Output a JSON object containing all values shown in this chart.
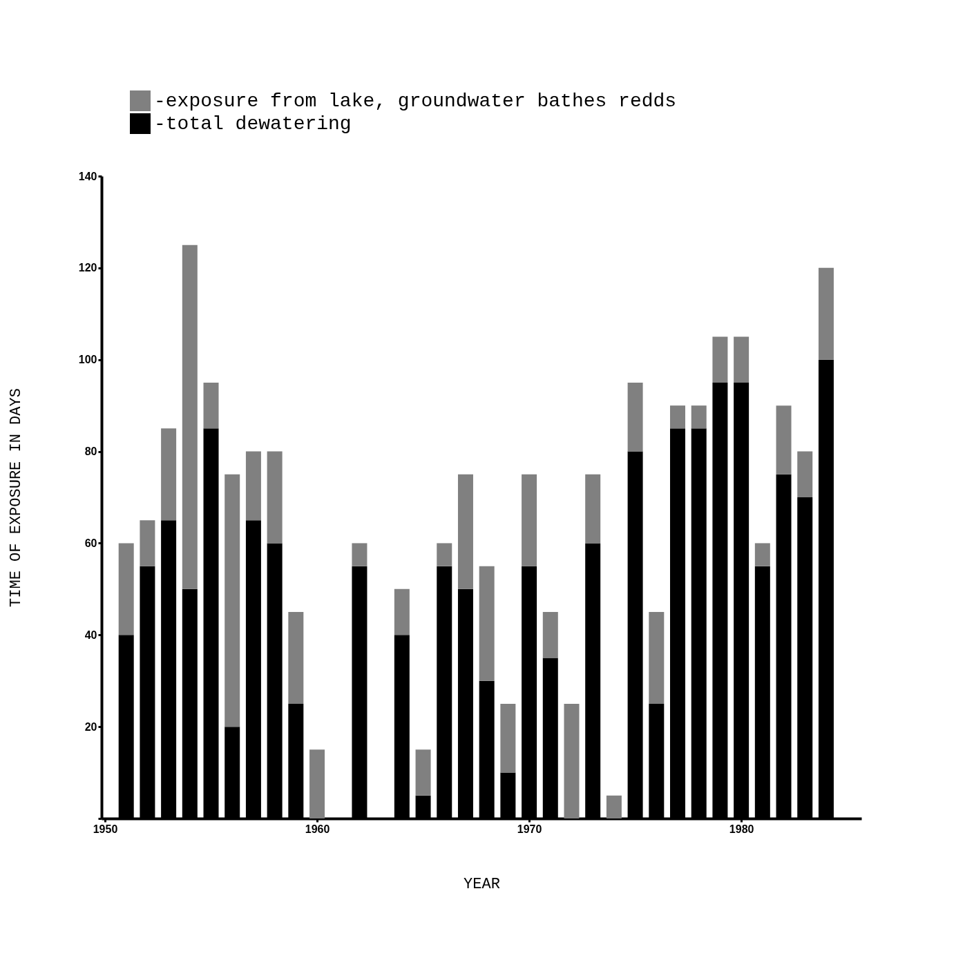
{
  "chart_data": {
    "type": "bar",
    "stacked": true,
    "xlabel": "YEAR",
    "ylabel": "TIME OF EXPOSURE IN DAYS",
    "x": [
      1951,
      1952,
      1953,
      1954,
      1955,
      1956,
      1957,
      1958,
      1959,
      1960,
      1962,
      1964,
      1965,
      1966,
      1967,
      1968,
      1969,
      1970,
      1971,
      1972,
      1973,
      1974,
      1975,
      1976,
      1977,
      1978,
      1979,
      1980,
      1981,
      1982,
      1983,
      1984
    ],
    "series": [
      {
        "name": "-total dewatering",
        "color": "#000000",
        "values": [
          40,
          55,
          65,
          50,
          85,
          20,
          65,
          60,
          25,
          0,
          55,
          40,
          5,
          55,
          50,
          30,
          10,
          55,
          35,
          0,
          60,
          0,
          80,
          25,
          85,
          85,
          95,
          95,
          55,
          75,
          70,
          100
        ]
      },
      {
        "name": "-exposure from lake, groundwater bathes redds",
        "color": "#808080",
        "values": [
          20,
          10,
          20,
          75,
          10,
          55,
          15,
          20,
          20,
          15,
          5,
          10,
          10,
          5,
          25,
          25,
          15,
          20,
          10,
          25,
          15,
          5,
          15,
          20,
          5,
          5,
          10,
          10,
          5,
          15,
          10,
          20
        ]
      }
    ],
    "xlim": [
      1950,
      1985.5
    ],
    "xticks": [
      1950,
      1960,
      1970,
      1980
    ],
    "ylim": [
      0,
      140
    ],
    "yticks": [
      {
        "value": 0,
        "label": null
      },
      20,
      40,
      60,
      80,
      100,
      120,
      140
    ],
    "grid": false,
    "legend": "top left"
  }
}
